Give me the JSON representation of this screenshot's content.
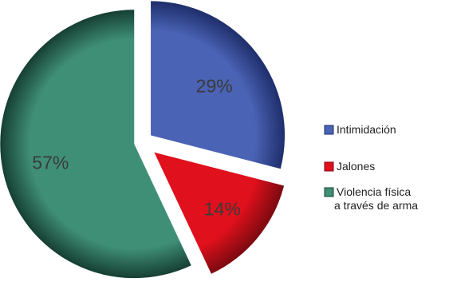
{
  "chart_data": {
    "type": "pie",
    "exploded": true,
    "legend_position": "right",
    "slices": [
      {
        "label_lines": [
          "Intimidación"
        ],
        "value": 29,
        "display": "29%",
        "color": "#4a63b5",
        "shadow": "#1f2e6b"
      },
      {
        "label_lines": [
          "Jalones"
        ],
        "value": 14,
        "display": "14%",
        "color": "#e0101c",
        "shadow": "#7c0a10"
      },
      {
        "label_lines": [
          "Violencia física",
          "a través de arma"
        ],
        "value": 57,
        "display": "57%",
        "color": "#3f8f76",
        "shadow": "#163f33"
      }
    ]
  }
}
